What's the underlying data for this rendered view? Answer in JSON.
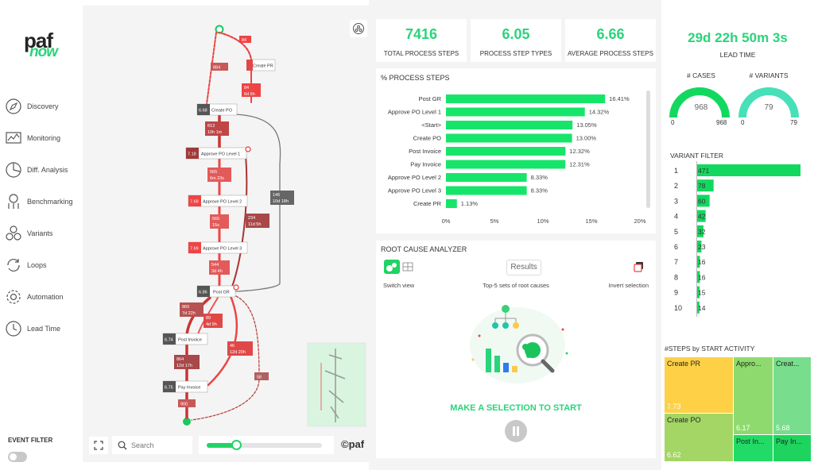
{
  "sidebar": {
    "logo_top": "paf",
    "logo_bottom": "now",
    "items": [
      {
        "label": "Discovery",
        "icon": "compass-icon"
      },
      {
        "label": "Monitoring",
        "icon": "monitor-chart-icon"
      },
      {
        "label": "Diff. Analysis",
        "icon": "pie-icon"
      },
      {
        "label": "Benchmarking",
        "icon": "benchmark-icon"
      },
      {
        "label": "Variants",
        "icon": "variants-icon"
      },
      {
        "label": "Loops",
        "icon": "loop-icon"
      },
      {
        "label": "Automation",
        "icon": "gear-icon"
      },
      {
        "label": "Lead Time",
        "icon": "clock-icon"
      }
    ],
    "event_filter_label": "EVENT FILTER"
  },
  "process_map": {
    "search_placeholder": "Search",
    "brand_mark": "©paf",
    "nodes": [
      {
        "label": "Create PR",
        "count": "7.73"
      },
      {
        "label": "Create PO",
        "count": "6.68"
      },
      {
        "label": "Approve PO Level 1",
        "count": "7.18"
      },
      {
        "label": "Approve PO Level 2",
        "count": "7.69"
      },
      {
        "label": "Approve PO Level 3",
        "count": "7.69"
      },
      {
        "label": "Post GR",
        "count": "6.86"
      },
      {
        "label": "Post Invoice",
        "count": "6.74"
      },
      {
        "label": "Pay Invoice",
        "count": "6.75"
      }
    ],
    "edges": [
      {
        "count": "84",
        "time": ""
      },
      {
        "count": "84",
        "time": "6d 6h"
      },
      {
        "count": "884",
        "time": ""
      },
      {
        "count": "813",
        "time": "10h 1m"
      },
      {
        "count": "565",
        "time": "6m 23s"
      },
      {
        "count": "565",
        "time": "15s"
      },
      {
        "count": "234",
        "time": "11d 5h"
      },
      {
        "count": "146",
        "time": "10d 18h"
      },
      {
        "count": "544",
        "time": "3d 4h"
      },
      {
        "count": "860",
        "time": "7d 22h"
      },
      {
        "count": "89",
        "time": "4d 9h"
      },
      {
        "count": "46",
        "time": "12d 20h"
      },
      {
        "count": "864",
        "time": "12d 17h"
      },
      {
        "count": "58",
        "time": ""
      },
      {
        "count": "900",
        "time": ""
      }
    ]
  },
  "kpis": [
    {
      "value": "7416",
      "label": "TOTAL PROCESS STEPS"
    },
    {
      "value": "6.05",
      "label": "PROCESS STEP TYPES"
    },
    {
      "value": "6.66",
      "label": "AVERAGE PROCESS STEPS"
    }
  ],
  "lead_time": {
    "value": "29d 22h 50m 3s",
    "label": "LEAD TIME"
  },
  "gauges": [
    {
      "title": "# CASES",
      "value": "968",
      "min": "0",
      "max": "968",
      "fraction": 1.0
    },
    {
      "title": "# VARIANTS",
      "value": "79",
      "min": "0",
      "max": "79",
      "fraction": 1.0
    }
  ],
  "process_steps_title": "% PROCESS STEPS",
  "chart_data": {
    "type": "bar",
    "orientation": "horizontal",
    "categories": [
      "Post GR",
      "Approve PO Level 1",
      "<Start>",
      "Create PO",
      "Post Invoice",
      "Pay Invoice",
      "Approve PO Level 2",
      "Approve PO Level 3",
      "Create PR"
    ],
    "values": [
      16.41,
      14.32,
      13.05,
      13.0,
      12.32,
      12.31,
      8.33,
      8.33,
      1.13
    ],
    "value_labels": [
      "16.41%",
      "14.32%",
      "13.05%",
      "13.00%",
      "12.32%",
      "12.31%",
      "8.33%",
      "8.33%",
      "1.13%"
    ],
    "xticks": [
      "0%",
      "5%",
      "10%",
      "15%",
      "20%"
    ],
    "xlim": [
      0,
      20
    ],
    "title": "% PROCESS STEPS",
    "bar_color": "#17e56a"
  },
  "root_cause": {
    "title": "ROOT CAUSE ANALYZER",
    "results_label": "Results",
    "switch_view": "Switch view",
    "top5": "Top-5 sets of root causes",
    "invert": "Invert selection",
    "cta": "MAKE A SELECTION TO START"
  },
  "variant_filter": {
    "title": "VARIANT FILTER",
    "rows": [
      {
        "rank": "1",
        "value": 471
      },
      {
        "rank": "2",
        "value": 78
      },
      {
        "rank": "3",
        "value": 60
      },
      {
        "rank": "4",
        "value": 42
      },
      {
        "rank": "5",
        "value": 32
      },
      {
        "rank": "6",
        "value": 23
      },
      {
        "rank": "7",
        "value": 16
      },
      {
        "rank": "8",
        "value": 16
      },
      {
        "rank": "9",
        "value": 15
      },
      {
        "rank": "10",
        "value": 14
      }
    ]
  },
  "treemap": {
    "title": "#STEPS by START ACTIVITY",
    "cells": [
      {
        "label": "Create PR",
        "value": "7.73",
        "color": "#fdd046"
      },
      {
        "label": "Appro...",
        "value": "6.17",
        "color": "#8fda6e"
      },
      {
        "label": "Creat...",
        "value": "5.68",
        "color": "#78dd8c"
      },
      {
        "label": "Create PO",
        "value": "6.62",
        "color": "#a3d664"
      },
      {
        "label": "Post In...",
        "value": "",
        "color": "#22db66"
      },
      {
        "label": "Pay In...",
        "value": "",
        "color": "#1ed45e"
      }
    ]
  }
}
